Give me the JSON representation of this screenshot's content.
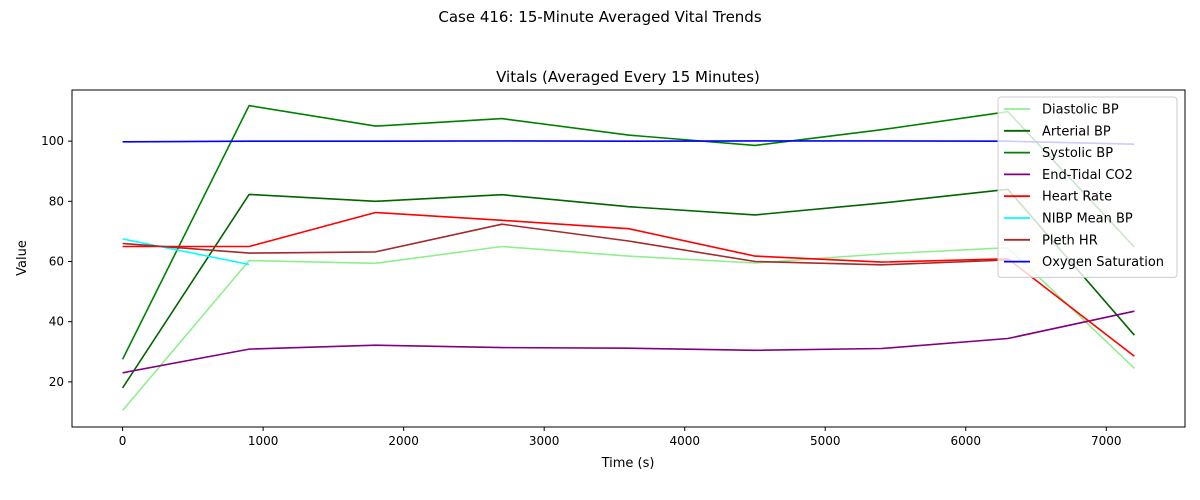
{
  "figure": {
    "suptitle": "Case 416: 15-Minute Averaged Vital Trends"
  },
  "chart_data": {
    "type": "line",
    "title": "Vitals (Averaged Every 15 Minutes)",
    "xlabel": "Time (s)",
    "ylabel": "Value",
    "xlim": [
      -360,
      7560
    ],
    "ylim": [
      5,
      117
    ],
    "xticks": [
      0,
      1000,
      2000,
      3000,
      4000,
      5000,
      6000,
      7000
    ],
    "yticks": [
      20,
      40,
      60,
      80,
      100
    ],
    "grid": false,
    "legend_position": "top-right",
    "series": [
      {
        "name": "Diastolic BP",
        "color": "#90ee90",
        "x": [
          0,
          900,
          1800,
          2700,
          3600,
          4500,
          5400,
          6300,
          7200
        ],
        "y": [
          10.5,
          60.3,
          59.4,
          65.0,
          61.8,
          59.5,
          62.5,
          64.6,
          24.5
        ]
      },
      {
        "name": "Arterial BP",
        "color": "#006400",
        "x": [
          0,
          900,
          1800,
          2700,
          3600,
          4500,
          5400,
          6300,
          7200
        ],
        "y": [
          18.0,
          82.3,
          80.0,
          82.2,
          78.2,
          75.5,
          79.4,
          84.0,
          35.5
        ]
      },
      {
        "name": "Systolic BP",
        "color": "#008000",
        "x": [
          0,
          900,
          1800,
          2700,
          3600,
          4500,
          5400,
          6300,
          7200
        ],
        "y": [
          27.5,
          111.8,
          105.0,
          107.5,
          102.0,
          98.6,
          103.8,
          109.8,
          64.8
        ]
      },
      {
        "name": "End-Tidal CO2",
        "color": "#800080",
        "x": [
          0,
          900,
          1800,
          2700,
          3600,
          4500,
          5400,
          6300,
          7200
        ],
        "y": [
          23.0,
          30.9,
          32.2,
          31.4,
          31.2,
          30.5,
          31.1,
          34.4,
          43.5
        ]
      },
      {
        "name": "Heart Rate",
        "color": "#ff0000",
        "x": [
          0,
          900,
          1800,
          2700,
          3600,
          4500,
          5400,
          6300,
          7200
        ],
        "y": [
          65.0,
          65.0,
          76.3,
          73.7,
          70.9,
          61.8,
          59.8,
          60.9,
          28.5
        ]
      },
      {
        "name": "NIBP Mean BP",
        "color": "#00ffff",
        "x": [
          0,
          900
        ],
        "y": [
          67.5,
          59.0
        ]
      },
      {
        "name": "Pleth HR",
        "color": "#a52a2a",
        "x": [
          0,
          900,
          1800,
          2700,
          3600,
          4500,
          5400,
          6300
        ],
        "y": [
          66.0,
          62.8,
          63.2,
          72.4,
          66.8,
          60.0,
          58.9,
          60.5
        ]
      },
      {
        "name": "Oxygen Saturation",
        "color": "#0000ff",
        "x": [
          0,
          900,
          1800,
          2700,
          3600,
          4500,
          5400,
          6300,
          7200
        ],
        "y": [
          99.8,
          100.0,
          100.0,
          100.1,
          100.0,
          100.1,
          100.1,
          100.0,
          99.0
        ]
      }
    ]
  }
}
